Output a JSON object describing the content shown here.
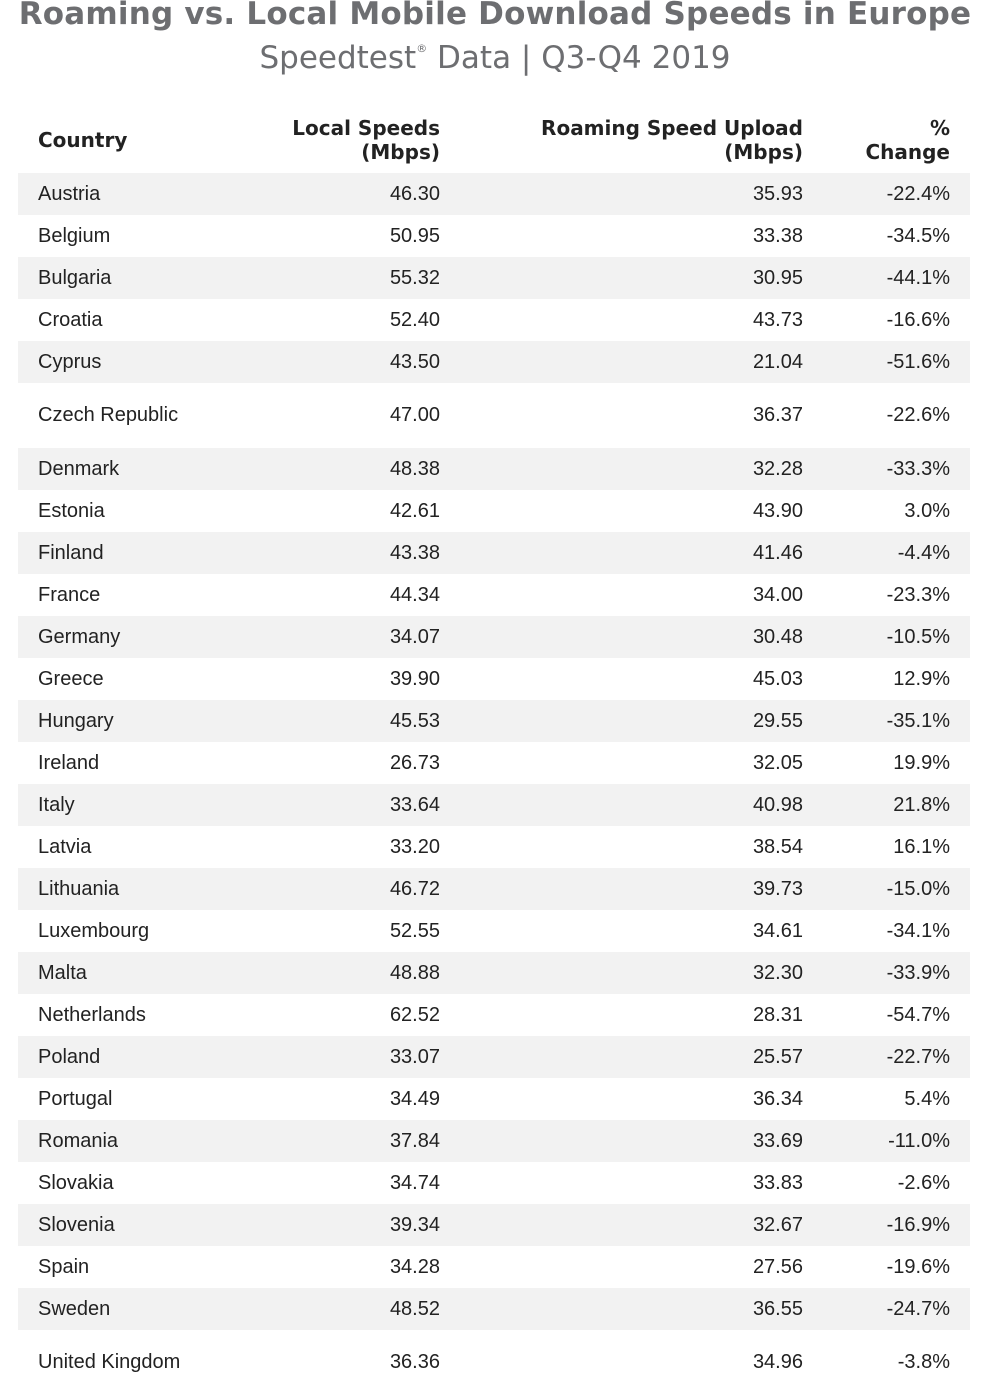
{
  "chart_data": {
    "type": "table",
    "title": "Roaming vs. Local Mobile Download Speeds in Europe",
    "subtitle": {
      "brand": "Speedtest",
      "mark": "®",
      "rest": " Data | Q3-Q4 2019"
    },
    "columns": [
      {
        "line1": "Country",
        "line2": ""
      },
      {
        "line1": "Local Speeds",
        "line2": "(Mbps)"
      },
      {
        "line1": "Roaming Speed Upload",
        "line2": "(Mbps)"
      },
      {
        "line1": "%",
        "line2": "Change"
      }
    ],
    "rows": [
      {
        "country": "Austria",
        "local": "46.30",
        "roaming": "35.93",
        "change": "-22.4%"
      },
      {
        "country": "Belgium",
        "local": "50.95",
        "roaming": "33.38",
        "change": "-34.5%"
      },
      {
        "country": "Bulgaria",
        "local": "55.32",
        "roaming": "30.95",
        "change": "-44.1%"
      },
      {
        "country": "Croatia",
        "local": "52.40",
        "roaming": "43.73",
        "change": "-16.6%"
      },
      {
        "country": "Cyprus",
        "local": "43.50",
        "roaming": "21.04",
        "change": "-51.6%"
      },
      {
        "country": "Czech Republic",
        "local": "47.00",
        "roaming": "36.37",
        "change": "-22.6%"
      },
      {
        "country": "Denmark",
        "local": "48.38",
        "roaming": "32.28",
        "change": "-33.3%"
      },
      {
        "country": "Estonia",
        "local": "42.61",
        "roaming": "43.90",
        "change": "3.0%"
      },
      {
        "country": "Finland",
        "local": "43.38",
        "roaming": "41.46",
        "change": "-4.4%"
      },
      {
        "country": "France",
        "local": "44.34",
        "roaming": "34.00",
        "change": "-23.3%"
      },
      {
        "country": "Germany",
        "local": "34.07",
        "roaming": "30.48",
        "change": "-10.5%"
      },
      {
        "country": "Greece",
        "local": "39.90",
        "roaming": "45.03",
        "change": "12.9%"
      },
      {
        "country": "Hungary",
        "local": "45.53",
        "roaming": "29.55",
        "change": "-35.1%"
      },
      {
        "country": "Ireland",
        "local": "26.73",
        "roaming": "32.05",
        "change": "19.9%"
      },
      {
        "country": "Italy",
        "local": "33.64",
        "roaming": "40.98",
        "change": "21.8%"
      },
      {
        "country": "Latvia",
        "local": "33.20",
        "roaming": "38.54",
        "change": "16.1%"
      },
      {
        "country": "Lithuania",
        "local": "46.72",
        "roaming": "39.73",
        "change": "-15.0%"
      },
      {
        "country": "Luxembourg",
        "local": "52.55",
        "roaming": "34.61",
        "change": "-34.1%"
      },
      {
        "country": "Malta",
        "local": "48.88",
        "roaming": "32.30",
        "change": "-33.9%"
      },
      {
        "country": "Netherlands",
        "local": "62.52",
        "roaming": "28.31",
        "change": "-54.7%"
      },
      {
        "country": "Poland",
        "local": "33.07",
        "roaming": "25.57",
        "change": "-22.7%"
      },
      {
        "country": "Portugal",
        "local": "34.49",
        "roaming": "36.34",
        "change": "5.4%"
      },
      {
        "country": "Romania",
        "local": "37.84",
        "roaming": "33.69",
        "change": "-11.0%"
      },
      {
        "country": "Slovakia",
        "local": "34.74",
        "roaming": "33.83",
        "change": "-2.6%"
      },
      {
        "country": "Slovenia",
        "local": "39.34",
        "roaming": "32.67",
        "change": "-16.9%"
      },
      {
        "country": "Spain",
        "local": "34.28",
        "roaming": "27.56",
        "change": "-19.6%"
      },
      {
        "country": "Sweden",
        "local": "48.52",
        "roaming": "36.55",
        "change": "-24.7%"
      },
      {
        "country": "United Kingdom",
        "local": "36.36",
        "roaming": "34.96",
        "change": "-3.8%"
      }
    ],
    "colors": {
      "title": "#6d6e71",
      "stripe": "#f2f2f2",
      "text": "#222222"
    }
  }
}
